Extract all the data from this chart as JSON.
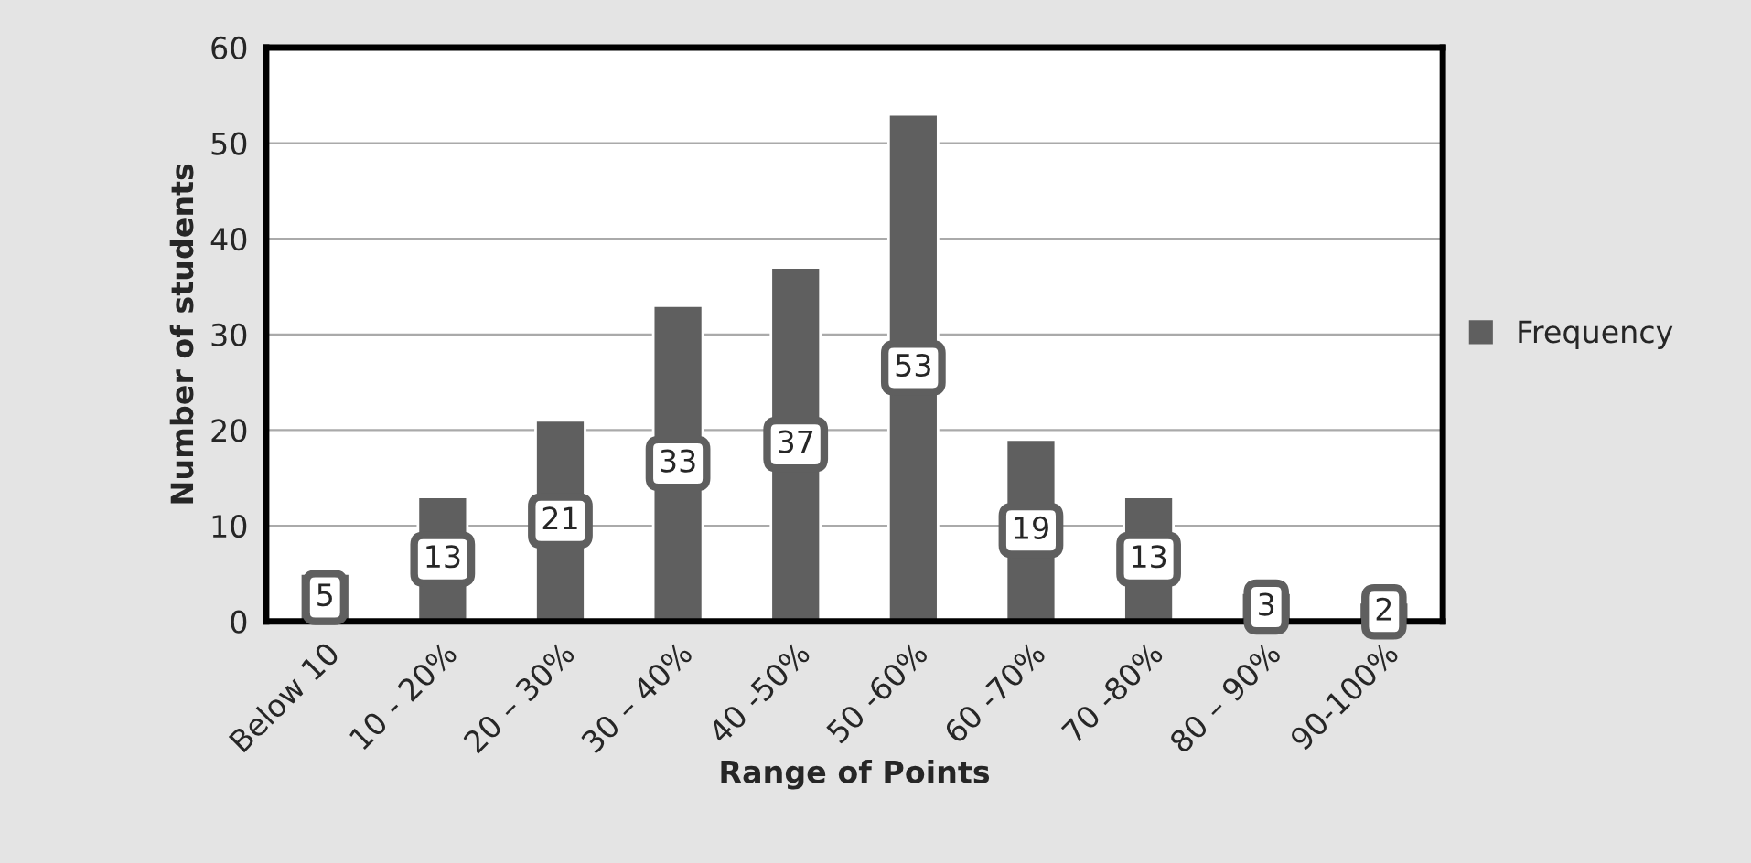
{
  "chart_data": {
    "type": "bar",
    "xlabel": "Range of Points",
    "ylabel": "Number of students",
    "categories": [
      "Below 10",
      "10 - 20%",
      "20 – 30%",
      "30 – 40%",
      "40 -50%",
      "50 -60%",
      "60 -70%",
      "70 -80%",
      "80 – 90%",
      "90-100%"
    ],
    "series": [
      {
        "name": "Frequency",
        "color": "#5f5f5f",
        "values": [
          5,
          13,
          21,
          33,
          37,
          53,
          19,
          13,
          3,
          2
        ]
      }
    ],
    "ylim": [
      0,
      60
    ],
    "yticks": [
      0,
      10,
      20,
      30,
      40,
      50,
      60
    ],
    "grid": "y",
    "legend": "right",
    "data_labels": true
  }
}
